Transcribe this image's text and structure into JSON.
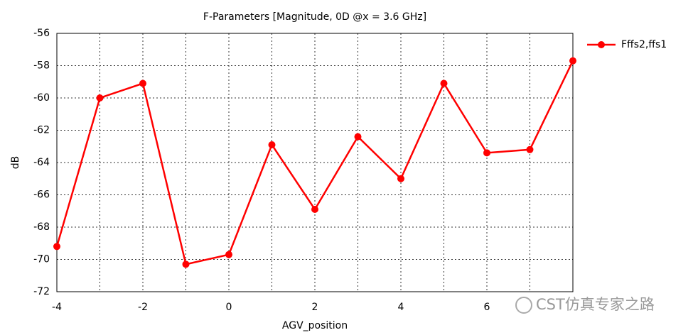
{
  "chart_data": {
    "type": "line",
    "title": "F-Parameters [Magnitude, 0D @x = 3.6 GHz]",
    "xlabel": "AGV_position",
    "ylabel": "dB",
    "x": [
      -4,
      -3,
      -2,
      -1,
      0,
      1,
      2,
      3,
      4,
      5,
      6,
      7,
      8
    ],
    "series": [
      {
        "name": "Fffs2,ffs1",
        "color": "#ff0000",
        "values": [
          -69.2,
          -60.0,
          -59.1,
          -70.3,
          -69.7,
          -62.9,
          -66.9,
          -62.4,
          -65.0,
          -59.1,
          -63.4,
          -63.2,
          -57.7
        ]
      }
    ],
    "xlim": [
      -4,
      8
    ],
    "xticks": [
      -4,
      -2,
      0,
      2,
      4,
      6
    ],
    "x_minor_grid": [
      -3,
      -1,
      1,
      3,
      5,
      7
    ],
    "ylim": [
      -72,
      -56
    ],
    "yticks": [
      -72,
      -70,
      -68,
      -66,
      -64,
      -62,
      -60,
      -58,
      -56
    ],
    "grid": true,
    "legend": "right",
    "watermark": "CST仿真专家之路"
  }
}
